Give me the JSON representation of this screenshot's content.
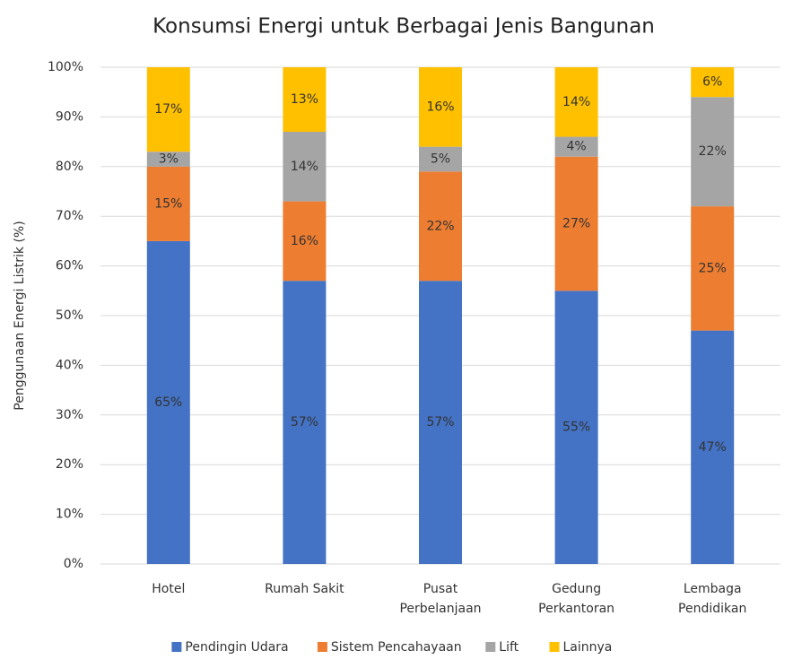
{
  "chart_data": {
    "type": "stacked_bar",
    "title": "Konsumsi Energi untuk Berbagai Jenis Bangunan",
    "y_label": "Penggunaan Energi Listrik (%)",
    "categories": [
      "Hotel",
      "Rumah Sakit",
      "Pusat\nPerbelanjaan",
      "Gedung\nPerkantoran",
      "Lembaga\nPendidikan"
    ],
    "series": [
      {
        "name": "Pendingin Udara",
        "color": "#4472c4",
        "values": [
          65,
          57,
          57,
          55,
          47
        ],
        "value_labels": [
          "65%",
          "57%",
          "57%",
          "55%",
          "47%"
        ]
      },
      {
        "name": "Sistem Pencahayaan",
        "color": "#ed7d31",
        "values": [
          15,
          16,
          22,
          27,
          25
        ],
        "value_labels": [
          "15%",
          "16%",
          "22%",
          "27%",
          "25%"
        ]
      },
      {
        "name": "Lift",
        "color": "#a5a5a5",
        "values": [
          3,
          14,
          5,
          4,
          22
        ],
        "value_labels": [
          "3%",
          "14%",
          "5%",
          "4%",
          "22%"
        ]
      },
      {
        "name": "Lainnya",
        "color": "#ffc000",
        "values": [
          17,
          13,
          16,
          14,
          6
        ],
        "value_labels": [
          "17%",
          "13%",
          "16%",
          "14%",
          "6%"
        ]
      }
    ],
    "ylim": [
      0,
      100
    ],
    "yticks": [
      {
        "value": 0,
        "label": "0%"
      },
      {
        "value": 10,
        "label": "10%"
      },
      {
        "value": 20,
        "label": "20%"
      },
      {
        "value": 30,
        "label": "30%"
      },
      {
        "value": 40,
        "label": "40%"
      },
      {
        "value": 50,
        "label": "50%"
      },
      {
        "value": 60,
        "label": "60%"
      },
      {
        "value": 70,
        "label": "70%"
      },
      {
        "value": 80,
        "label": "80%"
      },
      {
        "value": 90,
        "label": "90%"
      },
      {
        "value": 100,
        "label": "100%"
      }
    ],
    "grid": true,
    "legend": "bottom"
  }
}
